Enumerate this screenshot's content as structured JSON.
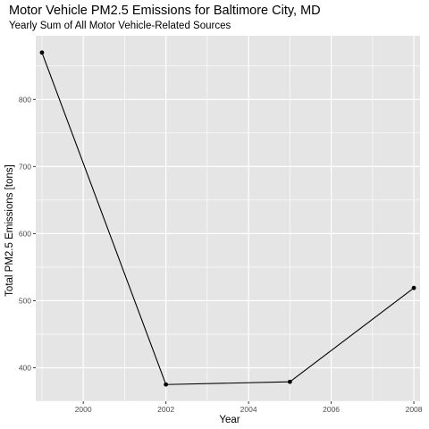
{
  "chart_data": {
    "type": "line",
    "title": "Motor Vehicle PM2.5 Emissions for Baltimore City, MD",
    "subtitle": "Yearly Sum of All  Motor Vehicle-Related Sources",
    "xlabel": "Year",
    "ylabel": "Total PM2.5 Emissions [tons]",
    "x": [
      1999,
      2002,
      2005,
      2008
    ],
    "series": [
      {
        "values": [
          870,
          375,
          379,
          519
        ]
      }
    ],
    "xlim": [
      1998.85,
      2008.15
    ],
    "ylim": [
      350,
      895
    ],
    "x_ticks": [
      2000,
      2002,
      2004,
      2006,
      2008
    ],
    "y_ticks": [
      400,
      500,
      600,
      700,
      800
    ],
    "grid": true,
    "legend": "none",
    "colors": {
      "panel": "#e5e5e5",
      "grid": "#ffffff",
      "line": "#000000"
    }
  }
}
